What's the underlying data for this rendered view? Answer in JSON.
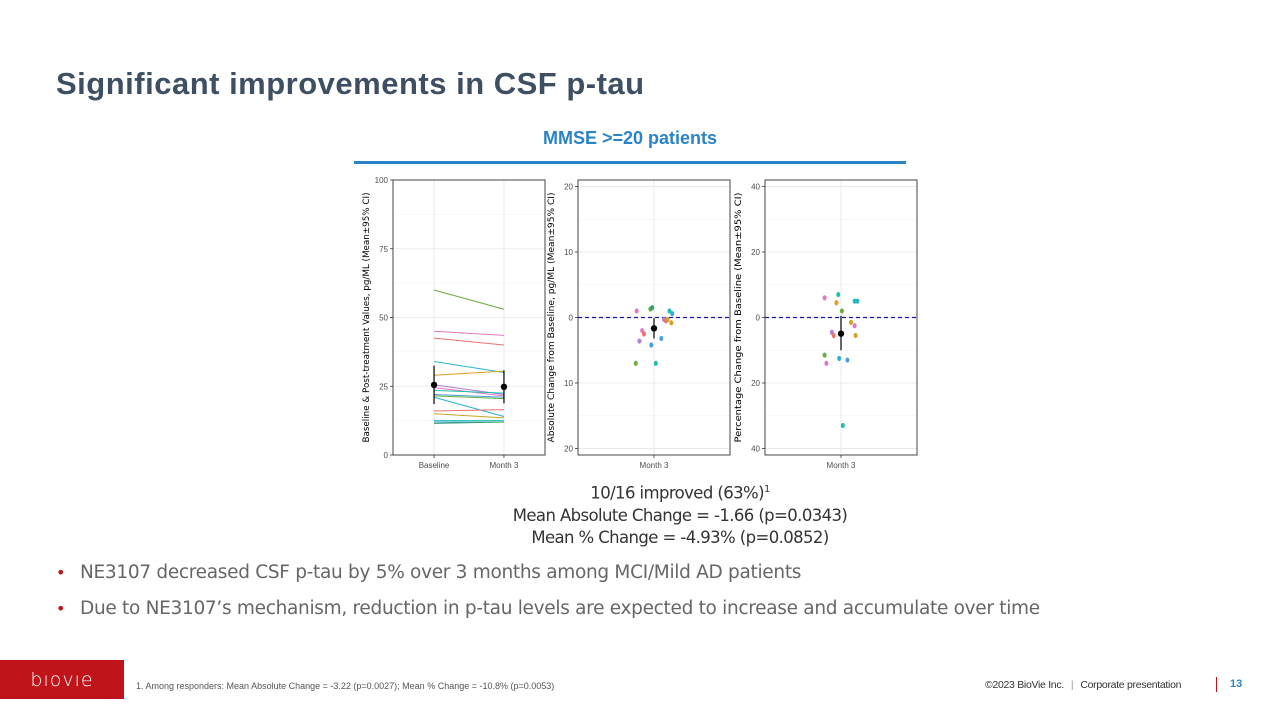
{
  "title": "Significant improvements in CSF p-tau",
  "subtitle": "MMSE >=20 patients",
  "summary": {
    "improved": "10/16 improved (63%)",
    "improved_sup": "1",
    "mean_abs": "Mean Absolute Change = -1.66 (p=0.0343)",
    "mean_pct": "Mean % Change = -4.93% (p=0.0852)"
  },
  "bullets": [
    "NE3107 decreased CSF p-tau by 5% over 3 months among MCI/Mild AD patients",
    "Due to NE3107’s mechanism, reduction in p-tau levels are expected to increase and accumulate over time"
  ],
  "footer": {
    "logo": "bıovıe",
    "footnote": "1. Among responders: Mean Absolute Change = -3.22 (p=0.0027); Mean % Change = -10.8% (p=0.0053)",
    "copyright": "©2023 BioVie Inc.",
    "separator": "|",
    "presentation": "Corporate presentation",
    "page": "13"
  },
  "colors": {
    "title": "#3f4f63",
    "accent_blue": "#2a83c8",
    "brand_red": "#c0141a",
    "zero_line": "#1a1aa6"
  },
  "chart_data": [
    {
      "type": "line",
      "ylabel": "Baseline & Post-treatment Values, pg/ML (Mean±95% CI)",
      "categories": [
        "Baseline",
        "Month 3"
      ],
      "ylim": [
        0,
        100
      ],
      "yticks": [
        "0",
        "25",
        "50",
        "75",
        "100"
      ],
      "grid": true,
      "series": [
        {
          "color": "#6aad3d",
          "values": [
            60,
            53
          ]
        },
        {
          "color": "#e377c2",
          "values": [
            45,
            43.5
          ]
        },
        {
          "color": "#f0706a",
          "values": [
            42.5,
            40
          ]
        },
        {
          "color": "#2bb0d4",
          "values": [
            34,
            30
          ]
        },
        {
          "color": "#d9a025",
          "values": [
            29,
            30.5
          ]
        },
        {
          "color": "#b07de0",
          "values": [
            25.5,
            22
          ]
        },
        {
          "color": "#e377c2",
          "values": [
            24.5,
            21.5
          ]
        },
        {
          "color": "#1fbfb0",
          "values": [
            23.5,
            22.5
          ]
        },
        {
          "color": "#4a9fe0",
          "values": [
            22,
            21
          ]
        },
        {
          "color": "#6aad3d",
          "values": [
            21.5,
            20.5
          ]
        },
        {
          "color": "#2bb0d4",
          "values": [
            21,
            14
          ]
        },
        {
          "color": "#f0706a",
          "values": [
            16,
            16.5
          ]
        },
        {
          "color": "#c9a227",
          "values": [
            15,
            13.5
          ]
        },
        {
          "color": "#1fbfb0",
          "values": [
            12.5,
            12.5
          ]
        },
        {
          "color": "#4a9fe0",
          "values": [
            12,
            12
          ]
        },
        {
          "color": "#2e9e6a",
          "values": [
            11.5,
            12
          ]
        }
      ],
      "summary_points": [
        {
          "x": "Baseline",
          "mean": 25.5,
          "ci": [
            18.5,
            32.5
          ]
        },
        {
          "x": "Month 3",
          "mean": 24.8,
          "ci": [
            18.8,
            30.8
          ]
        }
      ]
    },
    {
      "type": "scatter",
      "ylabel": "Absolute Change from Baseline, pg/ML (Mean±95% CI)",
      "categories": [
        "Month 3"
      ],
      "ylim": [
        -21,
        21
      ],
      "yticks": [
        "20",
        "10",
        "0",
        "10",
        "20"
      ],
      "ytick_values": [
        20,
        10,
        0,
        -10,
        -20
      ],
      "zero_line": true,
      "grid": true,
      "points": [
        {
          "x": -0.19,
          "y": 1,
          "color": "#e377c2"
        },
        {
          "x": -0.16,
          "y": -3.6,
          "color": "#b07de0"
        },
        {
          "x": -0.13,
          "y": -2,
          "color": "#e377c2"
        },
        {
          "x": -0.11,
          "y": -2.5,
          "color": "#f0706a"
        },
        {
          "x": -0.2,
          "y": -7,
          "color": "#6aad3d"
        },
        {
          "x": -0.04,
          "y": 1.3,
          "color": "#6aad3d"
        },
        {
          "x": -0.02,
          "y": 1.5,
          "color": "#2e9e6a"
        },
        {
          "x": -0.03,
          "y": -4.2,
          "color": "#4a9fe0"
        },
        {
          "x": 0.02,
          "y": -7,
          "color": "#1fbfb0"
        },
        {
          "x": 0.08,
          "y": -3.2,
          "color": "#4a9fe0"
        },
        {
          "x": 0.11,
          "y": -0.3,
          "color": "#b07de0"
        },
        {
          "x": 0.13,
          "y": -0.5,
          "color": "#f0706a"
        },
        {
          "x": 0.17,
          "y": 1,
          "color": "#1fbfb0"
        },
        {
          "x": 0.2,
          "y": 0.6,
          "color": "#2bb0d4"
        },
        {
          "x": 0.19,
          "y": -0.8,
          "color": "#d9a025"
        },
        {
          "x": 0.15,
          "y": -0.3,
          "color": "#c9a227"
        }
      ],
      "mean": {
        "x": 0,
        "y": -1.66,
        "ci": [
          -3.2,
          -0.1
        ]
      }
    },
    {
      "type": "scatter",
      "ylabel": "Percentage Change from Baseline (Mean±95% CI)",
      "categories": [
        "Month 3"
      ],
      "ylim": [
        -42,
        42
      ],
      "yticks": [
        "40",
        "20",
        "0",
        "20",
        "40"
      ],
      "ytick_values": [
        40,
        20,
        0,
        -20,
        -40
      ],
      "zero_line": true,
      "grid": true,
      "points": [
        {
          "x": -0.18,
          "y": 6,
          "color": "#e377c2"
        },
        {
          "x": -0.05,
          "y": 4.5,
          "color": "#d9a025"
        },
        {
          "x": -0.03,
          "y": 7,
          "color": "#1fbfb0"
        },
        {
          "x": 0.01,
          "y": 2,
          "color": "#6aad3d"
        },
        {
          "x": -0.1,
          "y": -4.5,
          "color": "#b07de0"
        },
        {
          "x": -0.08,
          "y": -5.5,
          "color": "#f0706a"
        },
        {
          "x": -0.18,
          "y": -11.5,
          "color": "#6aad3d"
        },
        {
          "x": -0.16,
          "y": -14,
          "color": "#e377c2"
        },
        {
          "x": -0.02,
          "y": -12.5,
          "color": "#2bb0d4"
        },
        {
          "x": 0.07,
          "y": -13,
          "color": "#4a9fe0"
        },
        {
          "x": 0.11,
          "y": -1.5,
          "color": "#c9a227"
        },
        {
          "x": 0.15,
          "y": -2.5,
          "color": "#e377c2"
        },
        {
          "x": 0.16,
          "y": -5.5,
          "color": "#d9a025"
        },
        {
          "x": 0.15,
          "y": 5,
          "color": "#1fbfb0"
        },
        {
          "x": 0.18,
          "y": 5,
          "color": "#2bb0d4"
        },
        {
          "x": 0.02,
          "y": -33,
          "color": "#1fbfb0"
        }
      ],
      "mean": {
        "x": 0,
        "y": -4.93,
        "ci": [
          -10,
          0.5
        ]
      }
    }
  ]
}
